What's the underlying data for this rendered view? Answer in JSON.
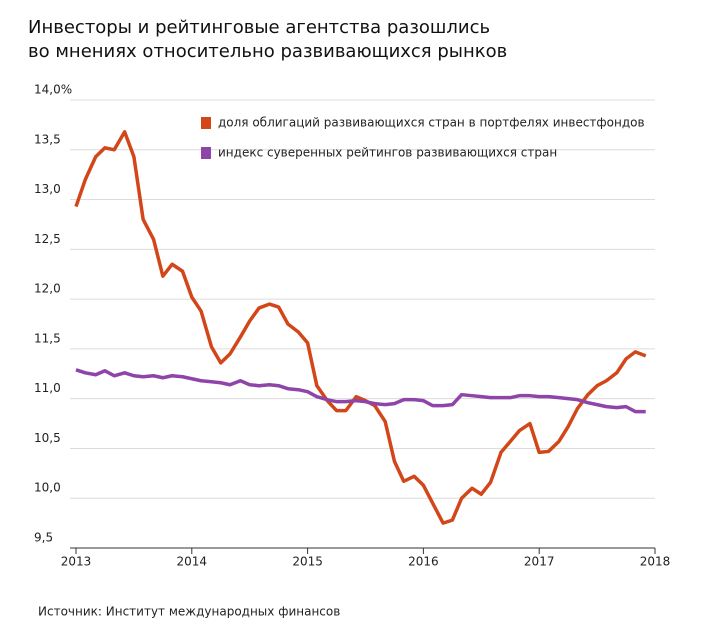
{
  "chart_data": {
    "type": "line",
    "title": [
      "Инвесторы и рейтинговые агентства разошлись",
      "во мнениях относительно развивающихся рынков"
    ],
    "source": "Источник: Институт международных финансов",
    "x": [
      2013,
      2013.08,
      2013.17,
      2013.25,
      2013.33,
      2013.42,
      2013.5,
      2013.58,
      2013.67,
      2013.75,
      2013.83,
      2013.92,
      2014,
      2014.08,
      2014.17,
      2014.25,
      2014.33,
      2014.42,
      2014.5,
      2014.58,
      2014.67,
      2014.75,
      2014.83,
      2014.92,
      2015,
      2015.08,
      2015.17,
      2015.25,
      2015.33,
      2015.42,
      2015.5,
      2015.58,
      2015.67,
      2015.75,
      2015.83,
      2015.92,
      2016,
      2016.08,
      2016.17,
      2016.25,
      2016.33,
      2016.42,
      2016.5,
      2016.58,
      2016.67,
      2016.75,
      2016.83,
      2016.92,
      2017,
      2017.08,
      2017.17,
      2017.25,
      2017.33,
      2017.42,
      2017.5,
      2017.58,
      2017.67,
      2017.75,
      2017.83,
      2017.92
    ],
    "series": [
      {
        "name": "доля облигаций развивающихся стран в портфелях инвестфондов",
        "color": "#d2461a",
        "values": [
          12.93,
          13.2,
          13.43,
          13.52,
          13.5,
          13.68,
          13.43,
          12.8,
          12.6,
          12.23,
          12.35,
          12.28,
          12.02,
          11.88,
          11.52,
          11.36,
          11.45,
          11.62,
          11.78,
          11.91,
          11.95,
          11.92,
          11.75,
          11.67,
          11.56,
          11.13,
          10.98,
          10.88,
          10.88,
          11.02,
          10.98,
          10.93,
          10.77,
          10.37,
          10.17,
          10.22,
          10.13,
          9.95,
          9.75,
          9.78,
          10.0,
          10.1,
          10.04,
          10.16,
          10.46,
          10.57,
          10.68,
          10.75,
          10.46,
          10.47,
          10.57,
          10.72,
          10.9,
          11.04,
          11.13,
          11.18,
          11.26,
          11.4,
          11.47,
          11.43
        ]
      },
      {
        "name": "индекс суверенных рейтингов развивающихся стран",
        "color": "#8e44a8",
        "values": [
          11.29,
          11.26,
          11.24,
          11.28,
          11.23,
          11.26,
          11.23,
          11.22,
          11.23,
          11.21,
          11.23,
          11.22,
          11.2,
          11.18,
          11.17,
          11.16,
          11.14,
          11.18,
          11.14,
          11.13,
          11.14,
          11.13,
          11.1,
          11.09,
          11.07,
          11.02,
          10.99,
          10.97,
          10.97,
          10.98,
          10.97,
          10.95,
          10.94,
          10.95,
          10.99,
          10.99,
          10.98,
          10.93,
          10.93,
          10.94,
          11.04,
          11.03,
          11.02,
          11.01,
          11.01,
          11.01,
          11.03,
          11.03,
          11.02,
          11.02,
          11.01,
          11.0,
          10.99,
          10.96,
          10.94,
          10.92,
          10.91,
          10.92,
          10.87,
          10.87
        ]
      }
    ],
    "xlim": [
      2013,
      2018
    ],
    "xticks": [
      2013,
      2014,
      2015,
      2016,
      2017,
      2018
    ],
    "ylim": [
      9.5,
      14
    ],
    "yticks": [
      {
        "value": 9.5,
        "label": "9,5"
      },
      {
        "value": 10,
        "label": "10,0"
      },
      {
        "value": 10.5,
        "label": "10,5"
      },
      {
        "value": 11,
        "label": "11,0"
      },
      {
        "value": 11.5,
        "label": "11,5"
      },
      {
        "value": 12,
        "label": "12,0"
      },
      {
        "value": 12.5,
        "label": "12,5"
      },
      {
        "value": 13,
        "label": "13,0"
      },
      {
        "value": 13.5,
        "label": "13,5"
      },
      {
        "value": 14,
        "label": "14,0%"
      }
    ],
    "grid": true,
    "legend": "top-right"
  }
}
